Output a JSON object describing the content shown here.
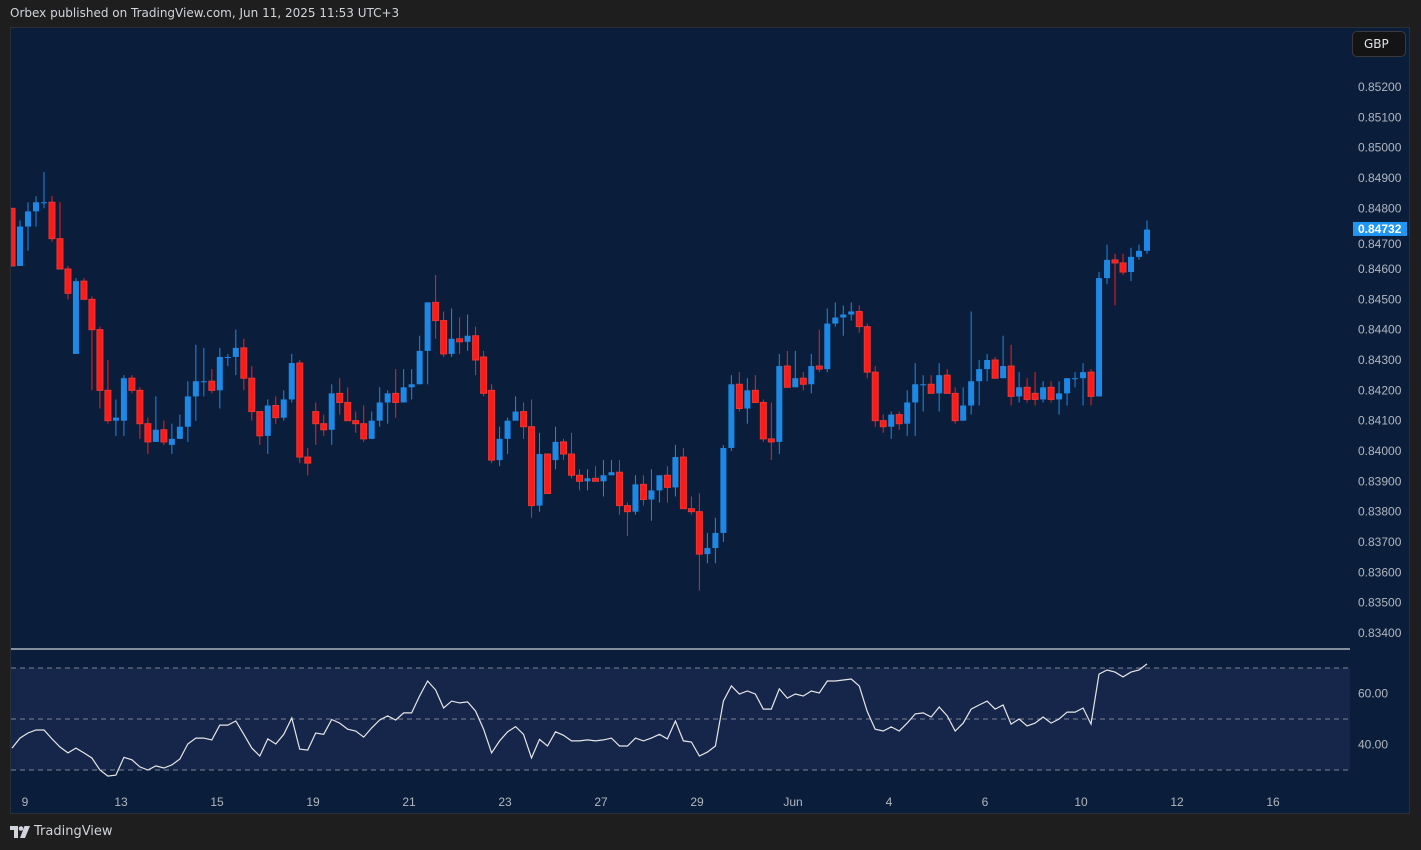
{
  "header": {
    "published": "Orbex published on TradingView.com, Jun 11, 2025 11:53 UTC+3"
  },
  "currency_button": {
    "label": "GBP"
  },
  "footer": {
    "brand": "TradingView"
  },
  "colors": {
    "up": "#1e88e5",
    "down": "#ff1a1a",
    "background": "#0a1e3b",
    "rsi_line": "#e6e6e6",
    "rsi_band": "#16264a",
    "last_price_bg": "#2196f3"
  },
  "chart_data": [
    {
      "type": "candlestick",
      "price_axis": {
        "labels": [
          "0.85200",
          "0.85100",
          "0.85000",
          "0.84900",
          "0.84800",
          "0.84700",
          "0.84600",
          "0.84500",
          "0.84400",
          "0.84300",
          "0.84200",
          "0.84100",
          "0.84000",
          "0.83900",
          "0.83800",
          "0.83700",
          "0.83600",
          "0.83500",
          "0.83400"
        ],
        "ylim": [
          0.8334,
          0.852
        ]
      },
      "last_price": "0.84732",
      "x_axis": {
        "labels": [
          "9",
          "13",
          "15",
          "19",
          "21",
          "23",
          "27",
          "29",
          "Jun",
          "4",
          "6",
          "10",
          "12",
          "16"
        ]
      },
      "grid": false,
      "ohlc": [
        [
          0.848,
          0.848,
          0.8461,
          0.8461
        ],
        [
          0.8461,
          0.8476,
          0.8461,
          0.8474
        ],
        [
          0.8474,
          0.8482,
          0.8466,
          0.8479
        ],
        [
          0.8479,
          0.8484,
          0.8474,
          0.8482
        ],
        [
          0.8482,
          0.8492,
          0.848,
          0.8482
        ],
        [
          0.8482,
          0.8484,
          0.8469,
          0.847
        ],
        [
          0.847,
          0.8482,
          0.846,
          0.846
        ],
        [
          0.846,
          0.8461,
          0.845,
          0.8452
        ],
        [
          0.8432,
          0.8457,
          0.8432,
          0.8456
        ],
        [
          0.8456,
          0.8457,
          0.845,
          0.845
        ],
        [
          0.845,
          0.8451,
          0.842,
          0.844
        ],
        [
          0.844,
          0.8441,
          0.8414,
          0.842
        ],
        [
          0.842,
          0.843,
          0.8409,
          0.841
        ],
        [
          0.841,
          0.8417,
          0.8405,
          0.8411
        ],
        [
          0.841,
          0.8425,
          0.8405,
          0.8424
        ],
        [
          0.8424,
          0.8425,
          0.8419,
          0.842
        ],
        [
          0.842,
          0.8421,
          0.8404,
          0.8409
        ],
        [
          0.8409,
          0.8411,
          0.8399,
          0.8403
        ],
        [
          0.8403,
          0.8418,
          0.8403,
          0.8407
        ],
        [
          0.8407,
          0.841,
          0.8402,
          0.8403
        ],
        [
          0.8402,
          0.8409,
          0.8399,
          0.8404
        ],
        [
          0.8404,
          0.8412,
          0.8404,
          0.8408
        ],
        [
          0.8408,
          0.8423,
          0.8403,
          0.8418
        ],
        [
          0.8418,
          0.8435,
          0.841,
          0.8423
        ],
        [
          0.8423,
          0.8434,
          0.8418,
          0.8423
        ],
        [
          0.8423,
          0.8427,
          0.8419,
          0.842
        ],
        [
          0.842,
          0.8434,
          0.8414,
          0.8431
        ],
        [
          0.8431,
          0.8432,
          0.8428,
          0.8431
        ],
        [
          0.8431,
          0.844,
          0.8425,
          0.8434
        ],
        [
          0.8434,
          0.8437,
          0.842,
          0.8424
        ],
        [
          0.8424,
          0.8428,
          0.841,
          0.8413
        ],
        [
          0.8413,
          0.8413,
          0.8402,
          0.8405
        ],
        [
          0.8405,
          0.8417,
          0.8399,
          0.8415
        ],
        [
          0.8415,
          0.8418,
          0.8409,
          0.8411
        ],
        [
          0.8411,
          0.842,
          0.841,
          0.8417
        ],
        [
          0.8417,
          0.8432,
          0.8416,
          0.8429
        ],
        [
          0.8429,
          0.843,
          0.8396,
          0.8398
        ],
        [
          0.8398,
          0.8401,
          0.8392,
          0.8396
        ],
        [
          0.8413,
          0.8416,
          0.8402,
          0.8409
        ],
        [
          0.8409,
          0.8412,
          0.8405,
          0.8407
        ],
        [
          0.8407,
          0.8422,
          0.8402,
          0.8419
        ],
        [
          0.8419,
          0.8424,
          0.8412,
          0.8416
        ],
        [
          0.8416,
          0.8421,
          0.841,
          0.841
        ],
        [
          0.841,
          0.8413,
          0.8406,
          0.8409
        ],
        [
          0.8409,
          0.8415,
          0.8403,
          0.8404
        ],
        [
          0.8404,
          0.8413,
          0.8404,
          0.841
        ],
        [
          0.841,
          0.8421,
          0.8408,
          0.8416
        ],
        [
          0.8416,
          0.842,
          0.8409,
          0.8419
        ],
        [
          0.8419,
          0.8427,
          0.8411,
          0.8416
        ],
        [
          0.8416,
          0.8427,
          0.8416,
          0.8421
        ],
        [
          0.8421,
          0.8427,
          0.8417,
          0.8422
        ],
        [
          0.8422,
          0.8438,
          0.8422,
          0.8433
        ],
        [
          0.8433,
          0.8449,
          0.8422,
          0.8449
        ],
        [
          0.8449,
          0.8458,
          0.8437,
          0.8443
        ],
        [
          0.8443,
          0.8446,
          0.8431,
          0.8432
        ],
        [
          0.8432,
          0.8447,
          0.8431,
          0.8437
        ],
        [
          0.8437,
          0.8444,
          0.8432,
          0.8436
        ],
        [
          0.8436,
          0.8445,
          0.8433,
          0.8438
        ],
        [
          0.8438,
          0.8441,
          0.8425,
          0.843
        ],
        [
          0.8431,
          0.8433,
          0.8418,
          0.8419
        ],
        [
          0.842,
          0.8422,
          0.8396,
          0.8397
        ],
        [
          0.8397,
          0.8408,
          0.8395,
          0.8404
        ],
        [
          0.8404,
          0.8411,
          0.8399,
          0.841
        ],
        [
          0.841,
          0.8418,
          0.841,
          0.8413
        ],
        [
          0.8413,
          0.8416,
          0.8404,
          0.8408
        ],
        [
          0.8408,
          0.8417,
          0.8378,
          0.8382
        ],
        [
          0.8382,
          0.8406,
          0.838,
          0.8399
        ],
        [
          0.8399,
          0.8399,
          0.8386,
          0.8386
        ],
        [
          0.8397,
          0.8408,
          0.8394,
          0.8403
        ],
        [
          0.8403,
          0.8404,
          0.8397,
          0.8399
        ],
        [
          0.8399,
          0.8406,
          0.8391,
          0.8392
        ],
        [
          0.8392,
          0.8394,
          0.8387,
          0.839
        ],
        [
          0.839,
          0.8394,
          0.8387,
          0.8391
        ],
        [
          0.8391,
          0.8395,
          0.839,
          0.839
        ],
        [
          0.839,
          0.8397,
          0.8385,
          0.8392
        ],
        [
          0.8392,
          0.8397,
          0.8392,
          0.8393
        ],
        [
          0.8393,
          0.8397,
          0.8379,
          0.8382
        ],
        [
          0.8382,
          0.8383,
          0.8372,
          0.838
        ],
        [
          0.838,
          0.8392,
          0.8379,
          0.8389
        ],
        [
          0.8389,
          0.8392,
          0.8382,
          0.8384
        ],
        [
          0.8384,
          0.8394,
          0.8377,
          0.8387
        ],
        [
          0.8387,
          0.8392,
          0.8383,
          0.8392
        ],
        [
          0.8392,
          0.8395,
          0.8383,
          0.8388
        ],
        [
          0.8388,
          0.8402,
          0.8385,
          0.8398
        ],
        [
          0.8398,
          0.8401,
          0.8381,
          0.8381
        ],
        [
          0.8381,
          0.8385,
          0.8379,
          0.838
        ],
        [
          0.838,
          0.8386,
          0.8354,
          0.8366
        ],
        [
          0.8366,
          0.8373,
          0.8363,
          0.8368
        ],
        [
          0.8368,
          0.8378,
          0.8363,
          0.8373
        ],
        [
          0.8373,
          0.8402,
          0.837,
          0.8401
        ],
        [
          0.8401,
          0.8425,
          0.84,
          0.8422
        ],
        [
          0.8422,
          0.8426,
          0.8413,
          0.8414
        ],
        [
          0.8414,
          0.8424,
          0.8409,
          0.842
        ],
        [
          0.842,
          0.8425,
          0.8416,
          0.8416
        ],
        [
          0.8416,
          0.8417,
          0.8403,
          0.8404
        ],
        [
          0.8404,
          0.8416,
          0.8397,
          0.8403
        ],
        [
          0.8403,
          0.8432,
          0.8399,
          0.8428
        ],
        [
          0.8428,
          0.8433,
          0.8421,
          0.8421
        ],
        [
          0.8421,
          0.8433,
          0.8421,
          0.8424
        ],
        [
          0.8424,
          0.8426,
          0.842,
          0.8422
        ],
        [
          0.8422,
          0.8432,
          0.8419,
          0.8428
        ],
        [
          0.8428,
          0.844,
          0.8426,
          0.8427
        ],
        [
          0.8427,
          0.8447,
          0.8426,
          0.8442
        ],
        [
          0.8442,
          0.8449,
          0.8441,
          0.8444
        ],
        [
          0.8444,
          0.8448,
          0.8438,
          0.8445
        ],
        [
          0.8445,
          0.8449,
          0.8443,
          0.8446
        ],
        [
          0.8446,
          0.8448,
          0.8439,
          0.8441
        ],
        [
          0.8441,
          0.8442,
          0.8424,
          0.8426
        ],
        [
          0.8426,
          0.8428,
          0.8408,
          0.841
        ],
        [
          0.841,
          0.8412,
          0.8406,
          0.8408
        ],
        [
          0.8408,
          0.8413,
          0.8404,
          0.8412
        ],
        [
          0.8412,
          0.8413,
          0.8407,
          0.8409
        ],
        [
          0.8409,
          0.842,
          0.8405,
          0.8416
        ],
        [
          0.8416,
          0.8429,
          0.8405,
          0.8422
        ],
        [
          0.8422,
          0.8425,
          0.8413,
          0.8422
        ],
        [
          0.8422,
          0.8425,
          0.8419,
          0.8419
        ],
        [
          0.8419,
          0.8429,
          0.8413,
          0.8425
        ],
        [
          0.8425,
          0.8427,
          0.8419,
          0.8419
        ],
        [
          0.8419,
          0.8421,
          0.8409,
          0.841
        ],
        [
          0.841,
          0.8421,
          0.841,
          0.8415
        ],
        [
          0.8415,
          0.8446,
          0.8412,
          0.8423
        ],
        [
          0.8423,
          0.843,
          0.8415,
          0.8427
        ],
        [
          0.8427,
          0.8432,
          0.8423,
          0.843
        ],
        [
          0.843,
          0.8431,
          0.8424,
          0.8424
        ],
        [
          0.8424,
          0.8438,
          0.8424,
          0.8428
        ],
        [
          0.8428,
          0.8435,
          0.8415,
          0.8418
        ],
        [
          0.8418,
          0.8426,
          0.8416,
          0.8421
        ],
        [
          0.8421,
          0.8424,
          0.8416,
          0.8417
        ],
        [
          0.8419,
          0.8426,
          0.8415,
          0.8417
        ],
        [
          0.8417,
          0.8423,
          0.8416,
          0.8421
        ],
        [
          0.8421,
          0.8423,
          0.8416,
          0.8417
        ],
        [
          0.8417,
          0.8423,
          0.8412,
          0.8419
        ],
        [
          0.8419,
          0.8424,
          0.8415,
          0.8424
        ],
        [
          0.8424,
          0.8426,
          0.8421,
          0.8424
        ],
        [
          0.8424,
          0.8429,
          0.8415,
          0.8426
        ],
        [
          0.8426,
          0.8427,
          0.8415,
          0.8418
        ],
        [
          0.8418,
          0.8459,
          0.8418,
          0.8457
        ],
        [
          0.8457,
          0.8468,
          0.8455,
          0.8463
        ],
        [
          0.8463,
          0.8465,
          0.8448,
          0.8462
        ],
        [
          0.8462,
          0.8465,
          0.8458,
          0.8459
        ],
        [
          0.8459,
          0.8467,
          0.8456,
          0.8464
        ],
        [
          0.8464,
          0.8468,
          0.8463,
          0.8466
        ],
        [
          0.8466,
          0.8476,
          0.8465,
          0.8473
        ]
      ]
    },
    {
      "type": "line",
      "indicator": "RSI",
      "y_axis": {
        "labels": [
          "60.00",
          "40.00"
        ],
        "ylim": [
          24,
          77
        ]
      },
      "levels": [
        70,
        50,
        30
      ],
      "values": [
        38.6,
        42.5,
        44.5,
        45.7,
        45.7,
        42.2,
        39,
        36.7,
        38.6,
        36.7,
        34.7,
        30,
        27.6,
        28,
        35,
        34,
        31.2,
        30,
        31.6,
        30.8,
        32,
        34.3,
        40.2,
        42.5,
        42.5,
        41.8,
        47.6,
        47.6,
        49.2,
        44,
        38.6,
        35.5,
        42.2,
        40.2,
        44,
        50.4,
        38.2,
        37.8,
        44.5,
        44,
        49.8,
        48.4,
        46,
        45.3,
        42.9,
        46.5,
        49.6,
        51.2,
        49.6,
        52.4,
        52.4,
        59,
        64.9,
        61.4,
        54.3,
        57,
        56.3,
        56.7,
        53.1,
        46,
        36.7,
        41.4,
        45,
        47,
        44,
        34.7,
        42,
        39.4,
        45,
        43.6,
        41.4,
        41.4,
        41.8,
        41.4,
        41.8,
        42.5,
        39.4,
        39.4,
        42.5,
        41.4,
        42.5,
        44,
        42.2,
        49.2,
        41.4,
        41,
        35.5,
        37,
        39.4,
        57,
        63,
        59.8,
        61,
        59.8,
        53.9,
        53.9,
        61.8,
        58.2,
        59.8,
        59,
        61,
        60.2,
        64.9,
        64.9,
        65.3,
        65.7,
        62.9,
        53,
        46,
        45.3,
        46.9,
        45.3,
        48.4,
        52,
        52.4,
        50.8,
        54.7,
        51.2,
        45.3,
        48.4,
        53.9,
        55.5,
        57,
        53.9,
        55.5,
        48,
        50,
        47.3,
        48.4,
        50.8,
        48.4,
        50,
        52.7,
        52.7,
        54.3,
        48,
        67.6,
        69.2,
        68.4,
        66.5,
        68.4,
        69.2,
        71.6
      ]
    }
  ]
}
